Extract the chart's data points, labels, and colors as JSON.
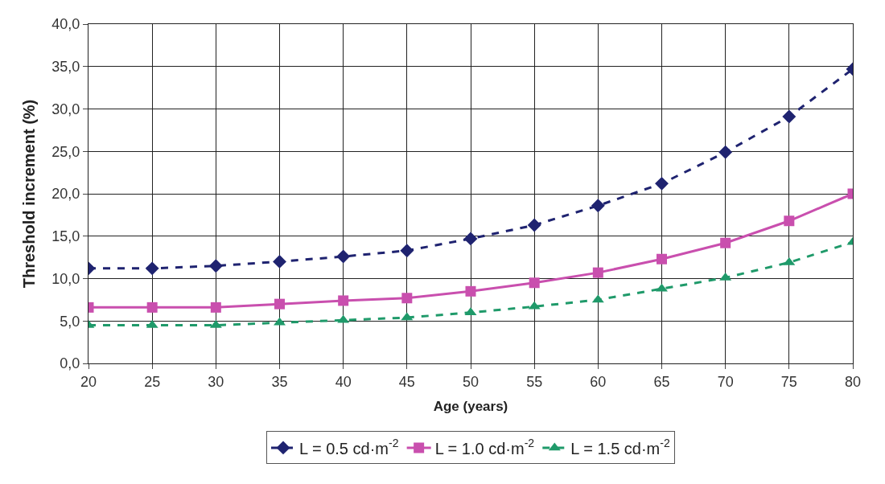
{
  "chart_data": {
    "type": "line",
    "xlabel": "Age (years)",
    "ylabel": "Threshold increment (%)",
    "x": [
      20,
      25,
      30,
      35,
      40,
      45,
      50,
      55,
      60,
      65,
      70,
      75,
      80
    ],
    "xlim": [
      20,
      80
    ],
    "xticks": [
      20,
      25,
      30,
      35,
      40,
      45,
      50,
      55,
      60,
      65,
      70,
      75,
      80
    ],
    "ylim": [
      0,
      40
    ],
    "yticks": [
      {
        "value": 0,
        "label": "0,0"
      },
      {
        "value": 5,
        "label": "5,0"
      },
      {
        "value": 10,
        "label": "10,0"
      },
      {
        "value": 15,
        "label": "15,0"
      },
      {
        "value": 20,
        "label": "20,0"
      },
      {
        "value": 25,
        "label": "25,0"
      },
      {
        "value": 30,
        "label": "30,0"
      },
      {
        "value": 35,
        "label": "35,0"
      },
      {
        "value": 40,
        "label": "40,0"
      }
    ],
    "grid": true,
    "legend": "bottom",
    "series": [
      {
        "name": "L = 0.5 cd·m$^{-2}$",
        "color": "#1f2370",
        "marker": "diamond",
        "line_style": "dashed",
        "values": [
          11.2,
          11.2,
          11.5,
          12.0,
          12.6,
          13.3,
          14.7,
          16.3,
          18.6,
          21.2,
          24.9,
          29.1,
          34.7
        ]
      },
      {
        "name": "L = 1.0 cd·m$^{-2}$",
        "color": "#c94fae",
        "marker": "square",
        "line_style": "solid",
        "values": [
          6.6,
          6.6,
          6.6,
          7.0,
          7.4,
          7.7,
          8.5,
          9.5,
          10.7,
          12.3,
          14.2,
          16.8,
          20.0
        ]
      },
      {
        "name": "L = 1.5 cd·m$^{-2}$",
        "color": "#1f9a6a",
        "marker": "triangle",
        "line_style": "dashed",
        "values": [
          4.5,
          4.5,
          4.5,
          4.8,
          5.1,
          5.4,
          6.0,
          6.7,
          7.5,
          8.8,
          10.1,
          11.9,
          14.3
        ]
      }
    ]
  }
}
